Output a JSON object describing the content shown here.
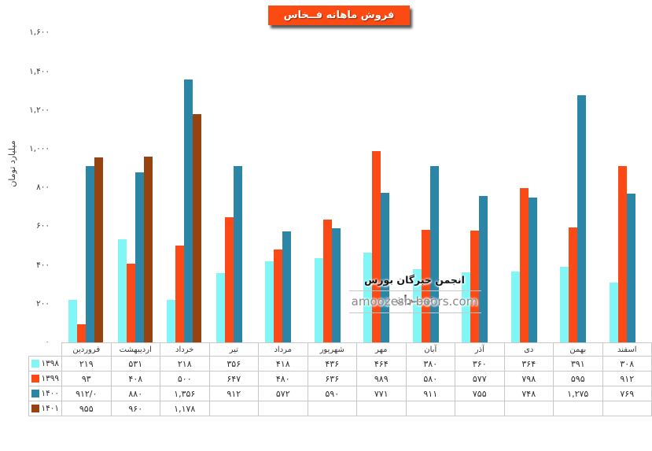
{
  "title": "فروش ماهانه فــخاس",
  "y_axis_title": "میلیارد تومان",
  "watermark": {
    "org": "انجمن خبرگان بورس تهـــران",
    "site": "amoozesh-boors.com"
  },
  "chart_data": {
    "type": "bar",
    "title": "فروش ماهانه فــخاس",
    "xlabel": "",
    "ylabel": "میلیارد تومان",
    "ylim": [
      0,
      1600
    ],
    "ytick_step": 200,
    "ytick_labels": [
      "۱,۶۰۰",
      "۱,۴۰۰",
      "۱,۲۰۰",
      "۱,۰۰۰",
      "۸۰۰",
      "۶۰۰",
      "۴۰۰",
      "۲۰۰",
      "۰"
    ],
    "grid": false,
    "legend_position": "table-left",
    "categories": [
      "فروردین",
      "اردیبهشت",
      "خرداد",
      "تیر",
      "مرداد",
      "شهریور",
      "مهر",
      "آبان",
      "آذر",
      "دی",
      "بهمن",
      "اسفند"
    ],
    "series": [
      {
        "name": "۱۳۹۸",
        "color": "#80f6f6",
        "values": [
          219,
          531,
          218,
          356,
          418,
          436,
          464,
          380,
          360,
          364,
          391,
          308
        ],
        "display": [
          "۲۱۹",
          "۵۳۱",
          "۲۱۸",
          "۳۵۶",
          "۴۱۸",
          "۴۳۶",
          "۴۶۴",
          "۳۸۰",
          "۳۶۰",
          "۳۶۴",
          "۳۹۱",
          "۳۰۸"
        ]
      },
      {
        "name": "۱۳۹۹",
        "color": "#fb4a15",
        "values": [
          93,
          408,
          500,
          647,
          480,
          636,
          989,
          580,
          577,
          798,
          595,
          912
        ],
        "display": [
          "۹۳",
          "۴۰۸",
          "۵۰۰",
          "۶۴۷",
          "۴۸۰",
          "۶۳۶",
          "۹۸۹",
          "۵۸۰",
          "۵۷۷",
          "۷۹۸",
          "۵۹۵",
          "۹۱۲"
        ]
      },
      {
        "name": "۱۴۰۰",
        "color": "#2b85a6",
        "values": [
          912,
          880,
          1356,
          912,
          572,
          590,
          771,
          911,
          755,
          748,
          1275,
          769
        ],
        "display": [
          "۹۱۲/۰",
          "۸۸۰",
          "۱,۳۵۶",
          "۹۱۲",
          "۵۷۲",
          "۵۹۰",
          "۷۷۱",
          "۹۱۱",
          "۷۵۵",
          "۷۴۸",
          "۱,۲۷۵",
          "۷۶۹"
        ]
      },
      {
        "name": "۱۴۰۱",
        "color": "#964310",
        "values": [
          955,
          960,
          1178,
          null,
          null,
          null,
          null,
          null,
          null,
          null,
          null,
          null
        ],
        "display": [
          "۹۵۵",
          "۹۶۰",
          "۱,۱۷۸",
          "",
          "",
          "",
          "",
          "",
          "",
          "",
          "",
          ""
        ]
      }
    ]
  }
}
